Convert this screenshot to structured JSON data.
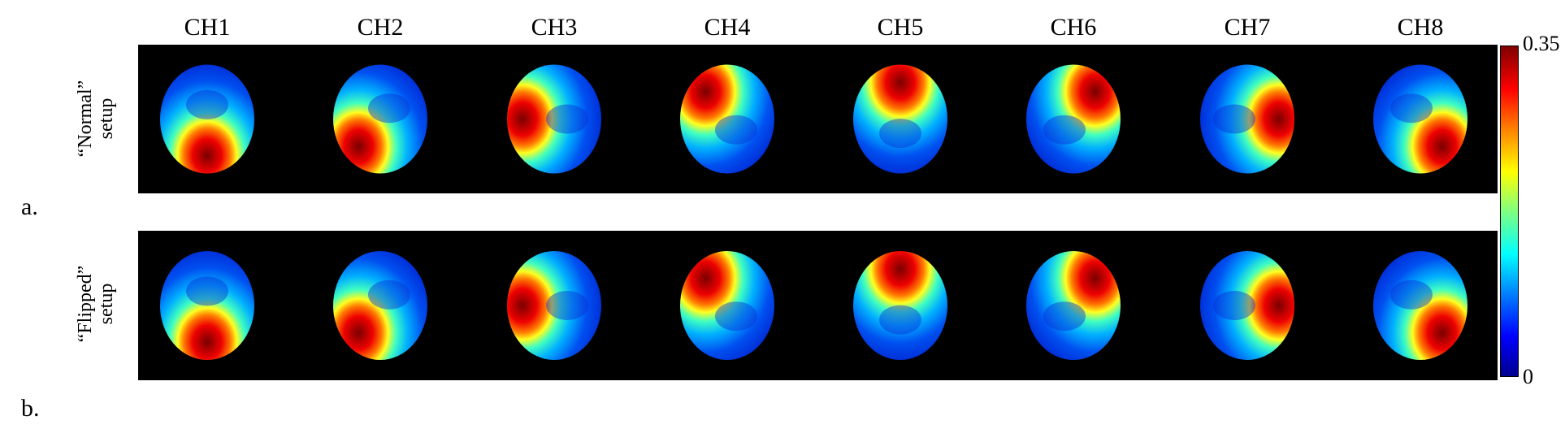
{
  "channels": [
    "CH1",
    "CH2",
    "CH3",
    "CH4",
    "CH5",
    "CH6",
    "CH7",
    "CH8"
  ],
  "rows": [
    {
      "panel": "a.",
      "label_line1": "“Normal”",
      "label_line2": "setup"
    },
    {
      "panel": "b.",
      "label_line1": "“Flipped”",
      "label_line2": "setup"
    }
  ],
  "colorbar": {
    "max_label": "0.35",
    "min_label": "0",
    "colormap": "jet",
    "colors": [
      "#00008f",
      "#0000ff",
      "#0080ff",
      "#00ffff",
      "#80ff80",
      "#ffff00",
      "#ff8000",
      "#ff0000",
      "#800000"
    ]
  },
  "hotspots": {
    "normal": [
      "bottom",
      "bottom-left",
      "left",
      "top-left",
      "top",
      "top-right",
      "right",
      "bottom-right"
    ],
    "flipped": [
      "bottom",
      "bottom-left",
      "left",
      "top-left",
      "top",
      "top-right",
      "right",
      "bottom-right"
    ]
  }
}
